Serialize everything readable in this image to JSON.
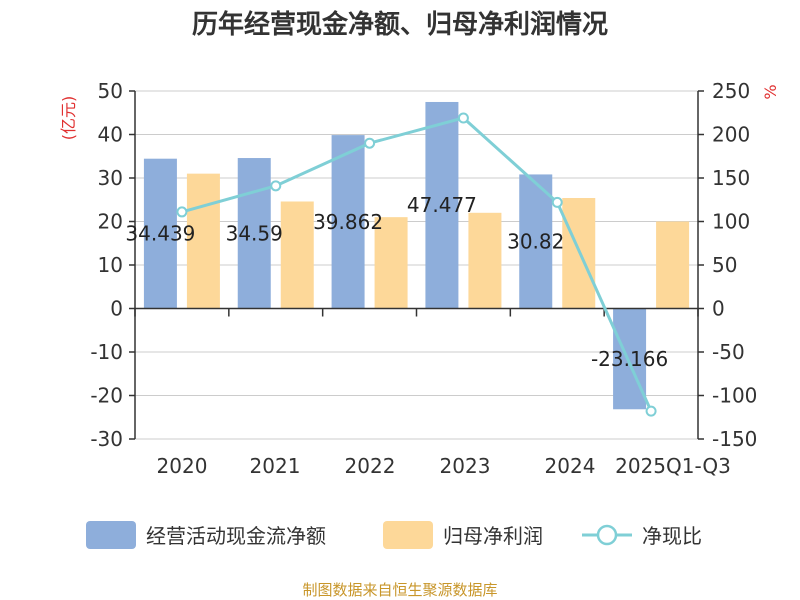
{
  "chart_data": {
    "type": "bar",
    "title": "历年经营现金净额、归母净利润情况",
    "ylabel_left": "(亿元)",
    "ylabel_right": "%",
    "categories": [
      "2020",
      "2021",
      "2022",
      "2023",
      "2024",
      "2025Q1-Q3"
    ],
    "ylim_left": [
      -30,
      50
    ],
    "ylim_right": [
      -150,
      250
    ],
    "yticks_left": [
      50,
      40,
      30,
      20,
      10,
      0,
      -10,
      -20,
      -30
    ],
    "yticks_right": [
      250,
      200,
      150,
      100,
      50,
      0,
      -50,
      -100,
      -150
    ],
    "grid": true,
    "legend_position": "bottom",
    "series": [
      {
        "name": "经营活动现金流净额",
        "kind": "bar",
        "axis": "left",
        "color": "#8eaedb",
        "values": [
          34.439,
          34.59,
          39.862,
          47.477,
          30.82,
          -23.166
        ],
        "labels": [
          "34.439",
          "34.59",
          "39.862",
          "47.477",
          "30.82",
          "-23.166"
        ]
      },
      {
        "name": "归母净利润",
        "kind": "bar",
        "axis": "left",
        "color": "#fdd899",
        "values": [
          31.0,
          24.6,
          21.0,
          22.0,
          25.4,
          20.0
        ]
      },
      {
        "name": "净现比",
        "kind": "line",
        "axis": "right",
        "color": "#7fcfd6",
        "values": [
          111,
          141,
          190,
          219,
          122,
          -118
        ]
      }
    ]
  },
  "source_text": "制图数据来自恒生聚源数据库"
}
